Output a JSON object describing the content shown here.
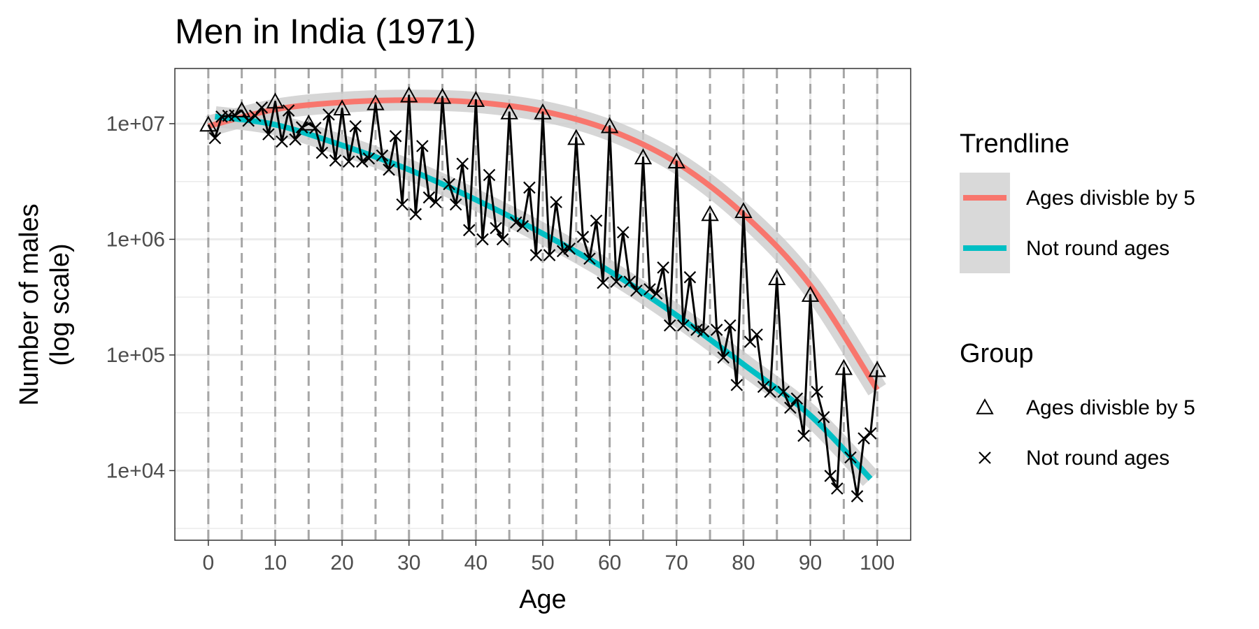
{
  "chart_data": {
    "type": "scatter",
    "title": "Men in India (1971)",
    "xlabel": "Age",
    "ylabel_lines": [
      "Number of males",
      "(log scale)"
    ],
    "xlim": [
      -5,
      105
    ],
    "ylim": [
      2500,
      30000000
    ],
    "y_scale": "log10",
    "x_ticks": [
      0,
      10,
      20,
      30,
      40,
      50,
      60,
      70,
      80,
      90,
      100
    ],
    "x_tick_labels": [
      "0",
      "10",
      "20",
      "30",
      "40",
      "50",
      "60",
      "70",
      "80",
      "90",
      "100"
    ],
    "y_ticks": [
      10000,
      100000,
      1000000,
      10000000
    ],
    "y_tick_labels": [
      "1e+04",
      "1e+05",
      "1e+06",
      "1e+07"
    ],
    "vlines_every": 5,
    "grid": true,
    "legend_position": "right",
    "series": [
      {
        "marker": "triangle",
        "x": [
          0,
          5,
          10,
          15,
          20,
          25,
          30,
          35,
          40,
          45,
          50,
          55,
          60,
          65,
          70,
          75,
          80,
          85,
          90,
          95,
          100
        ],
        "y": [
          9800000,
          13000000,
          15500000,
          10000000,
          13500000,
          15000000,
          17500000,
          17000000,
          16000000,
          12500000,
          12500000,
          7500000,
          9500000,
          5100000,
          4700000,
          1650000,
          1750000,
          460000,
          330000,
          77000,
          74000
        ]
      },
      {
        "marker": "x",
        "x": [
          1,
          2,
          3,
          4,
          6,
          7,
          8,
          9,
          11,
          12,
          13,
          14,
          16,
          17,
          18,
          19,
          21,
          22,
          23,
          24,
          26,
          27,
          28,
          29,
          31,
          32,
          33,
          34,
          36,
          37,
          38,
          39,
          41,
          42,
          43,
          44,
          46,
          47,
          48,
          49,
          51,
          52,
          53,
          54,
          56,
          57,
          58,
          59,
          61,
          62,
          63,
          64,
          66,
          67,
          68,
          69,
          71,
          72,
          73,
          74,
          76,
          77,
          78,
          79,
          81,
          82,
          83,
          84,
          86,
          87,
          88,
          89,
          91,
          92,
          93,
          94,
          96,
          97,
          98,
          99
        ],
        "y": [
          7500000,
          11500000,
          11700000,
          11800000,
          10600000,
          11700000,
          13800000,
          8100000,
          7000000,
          13000000,
          7300000,
          9300000,
          9200000,
          5600000,
          12000000,
          4800000,
          4700000,
          9500000,
          4700000,
          5000000,
          5300000,
          4000000,
          7800000,
          2000000,
          1650000,
          6400000,
          2300000,
          2100000,
          3000000,
          2000000,
          4500000,
          1200000,
          1000000,
          3600000,
          1250000,
          1000000,
          1400000,
          1300000,
          2800000,
          730000,
          730000,
          2100000,
          790000,
          830000,
          1050000,
          680000,
          1450000,
          420000,
          430000,
          1150000,
          430000,
          360000,
          370000,
          340000,
          570000,
          180000,
          180000,
          470000,
          165000,
          160000,
          165000,
          95000,
          180000,
          55000,
          130000,
          150000,
          53000,
          48000,
          48000,
          35000,
          42000,
          20000,
          48000,
          29000,
          9000,
          7000,
          13000,
          6000,
          19000,
          21000
        ]
      }
    ],
    "trend_lines": [
      {
        "color": "#F8766D",
        "x": [
          0,
          10,
          20,
          30,
          40,
          50,
          60,
          70,
          80,
          90,
          100
        ],
        "y": [
          9500000,
          13300000,
          15300000,
          16000000,
          15300000,
          12800000,
          8800000,
          4600000,
          1650000,
          400000,
          50000
        ]
      },
      {
        "color": "#00BFC4",
        "x": [
          1,
          10,
          20,
          30,
          40,
          50,
          60,
          70,
          80,
          90,
          99
        ],
        "y": [
          11500000,
          9800000,
          6500000,
          4000000,
          2200000,
          1120000,
          530000,
          220000,
          83000,
          30000,
          8500
        ]
      }
    ],
    "legends": [
      {
        "title": "Trendline",
        "entries": [
          {
            "label": "Ages divisble by 5",
            "color": "#F8766D"
          },
          {
            "label": "Not round ages",
            "color": "#00BFC4"
          }
        ]
      },
      {
        "title": "Group",
        "entries": [
          {
            "label": "Ages divisble by 5",
            "marker": "triangle"
          },
          {
            "label": "Not round ages",
            "marker": "x"
          }
        ]
      }
    ]
  }
}
